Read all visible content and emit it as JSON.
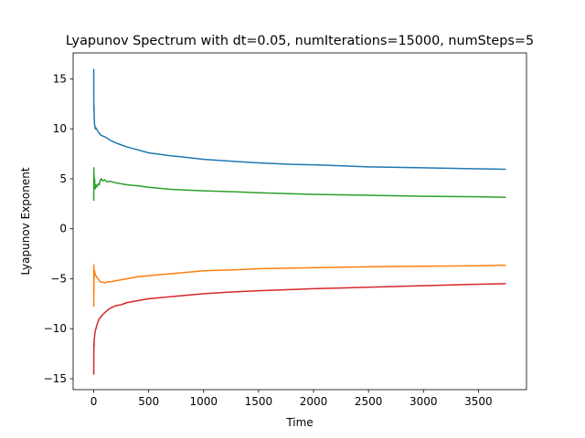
{
  "chart_data": {
    "type": "line",
    "title": "Lyapunov Spectrum with dt=0.05, numIterations=15000, numSteps=5",
    "xlabel": "Time",
    "ylabel": "Lyapunov Exponent",
    "xlim": [
      -187.5,
      3937.5
    ],
    "ylim": [
      -16.1,
      17.6
    ],
    "xticks": [
      0,
      500,
      1000,
      1500,
      2000,
      2500,
      3000,
      3500
    ],
    "xtick_labels": [
      "0",
      "500",
      "1000",
      "1500",
      "2000",
      "2500",
      "3000",
      "3500"
    ],
    "yticks": [
      -15,
      -10,
      -5,
      0,
      5,
      10,
      15
    ],
    "ytick_labels": [
      "−15",
      "−10",
      "−5",
      "0",
      "5",
      "10",
      "15"
    ],
    "grid": false,
    "legend": "none",
    "series": [
      {
        "color": "#1f77b4",
        "x": [
          0,
          1,
          2,
          3,
          5,
          8,
          12,
          15,
          20,
          30,
          40,
          50,
          60,
          80,
          100,
          130,
          160,
          200,
          250,
          300,
          400,
          500,
          600,
          700,
          800,
          1000,
          1200,
          1500,
          1800,
          2000,
          2500,
          3000,
          3500,
          3750
        ],
        "y": [
          16.0,
          11.8,
          12.4,
          12.0,
          11.0,
          10.4,
          10.2,
          10.0,
          10.1,
          9.9,
          9.7,
          9.6,
          9.4,
          9.3,
          9.2,
          9.0,
          8.8,
          8.6,
          8.4,
          8.2,
          7.9,
          7.6,
          7.45,
          7.3,
          7.2,
          6.95,
          6.8,
          6.6,
          6.45,
          6.4,
          6.2,
          6.1,
          6.0,
          5.95
        ]
      },
      {
        "color": "#2ca02c",
        "x": [
          0,
          1,
          2,
          3,
          5,
          8,
          10,
          15,
          20,
          30,
          40,
          50,
          60,
          70,
          80,
          100,
          120,
          150,
          200,
          300,
          400,
          500,
          700,
          1000,
          1300,
          1500,
          2000,
          2500,
          3000,
          3500,
          3750
        ],
        "y": [
          2.8,
          6.1,
          4.0,
          5.5,
          4.5,
          5.0,
          4.3,
          4.0,
          4.4,
          4.2,
          4.5,
          4.4,
          4.9,
          5.0,
          4.8,
          4.9,
          4.7,
          4.75,
          4.6,
          4.4,
          4.3,
          4.15,
          3.95,
          3.8,
          3.7,
          3.6,
          3.45,
          3.35,
          3.25,
          3.2,
          3.15
        ]
      },
      {
        "color": "#ff7f0e",
        "x": [
          0,
          1,
          2,
          3,
          5,
          8,
          10,
          15,
          20,
          30,
          40,
          50,
          60,
          80,
          100,
          130,
          160,
          200,
          300,
          400,
          500,
          700,
          1000,
          1300,
          1500,
          2000,
          2500,
          3000,
          3500,
          3750
        ],
        "y": [
          -7.8,
          -3.6,
          -6.5,
          -4.0,
          -4.8,
          -4.2,
          -4.4,
          -4.6,
          -4.7,
          -4.9,
          -5.0,
          -5.2,
          -5.3,
          -5.35,
          -5.4,
          -5.3,
          -5.3,
          -5.2,
          -5.0,
          -4.8,
          -4.7,
          -4.5,
          -4.2,
          -4.1,
          -4.0,
          -3.9,
          -3.8,
          -3.75,
          -3.7,
          -3.65
        ]
      },
      {
        "color": "#d62728",
        "x": [
          0,
          1,
          2,
          3,
          5,
          8,
          10,
          15,
          20,
          30,
          40,
          50,
          60,
          80,
          100,
          130,
          160,
          200,
          250,
          300,
          400,
          500,
          700,
          1000,
          1300,
          1500,
          2000,
          2500,
          3000,
          3500,
          3750
        ],
        "y": [
          -14.6,
          -12.0,
          -11.5,
          -11.8,
          -11.0,
          -10.8,
          -10.5,
          -10.2,
          -10.0,
          -9.6,
          -9.3,
          -9.0,
          -8.9,
          -8.6,
          -8.4,
          -8.1,
          -7.9,
          -7.7,
          -7.6,
          -7.4,
          -7.2,
          -7.0,
          -6.8,
          -6.5,
          -6.3,
          -6.2,
          -6.0,
          -5.85,
          -5.7,
          -5.55,
          -5.5
        ]
      }
    ]
  }
}
